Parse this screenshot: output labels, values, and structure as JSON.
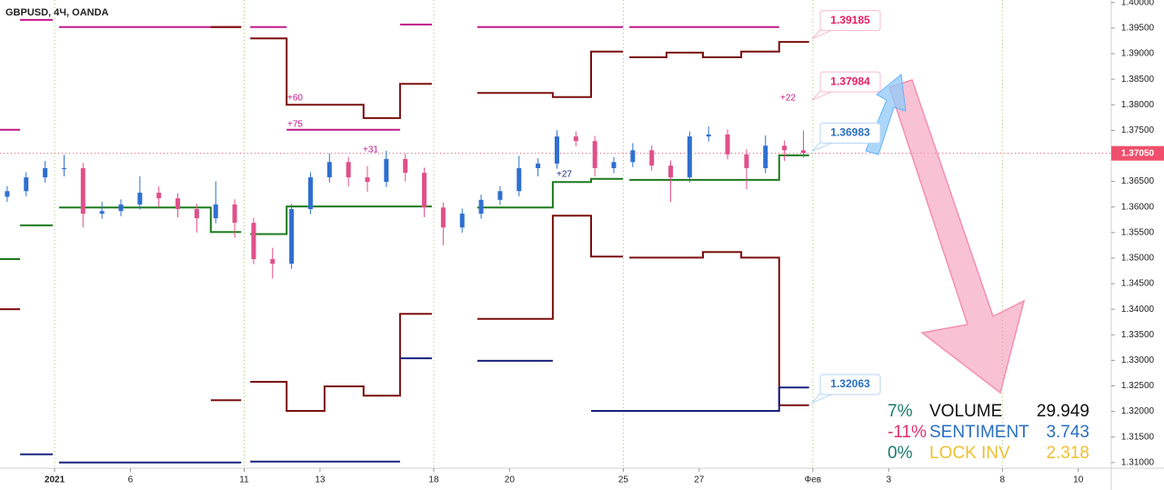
{
  "chart_data": {
    "type": "candlestick",
    "title": "GBPUSD, 4Ч, OANDA",
    "x": [
      -1.25,
      -0.75,
      -0.25,
      0.25,
      0.75,
      1.25,
      1.75,
      2.25,
      2.75,
      3.25,
      3.75,
      4.25,
      4.75,
      5.25,
      5.75,
      6.25,
      6.75,
      7.25,
      7.75,
      8.25,
      8.75,
      9.25,
      9.75,
      10.25,
      10.75,
      11.25,
      11.75,
      12.25,
      12.75,
      13.25,
      13.75,
      14.25,
      14.75,
      15.25,
      15.75,
      16.25,
      16.75,
      17.25,
      17.75,
      18.25,
      18.75,
      19.25,
      19.75
    ],
    "open": [
      1.362,
      1.3631,
      1.3658,
      1.3676,
      1.3676,
      1.3587,
      1.3592,
      1.3605,
      1.3628,
      1.3617,
      1.3596,
      1.3578,
      1.3605,
      1.3569,
      1.3498,
      1.3489,
      1.3596,
      1.3658,
      1.3688,
      1.3658,
      1.3649,
      1.3694,
      1.3667,
      1.3599,
      1.356,
      1.3587,
      1.3614,
      1.3631,
      1.3676,
      1.3685,
      1.3738,
      1.3729,
      1.3676,
      1.3688,
      1.3711,
      1.3681,
      1.3658,
      1.3738,
      1.3742,
      1.3703,
      1.3676,
      1.372,
      1.3711
    ],
    "high": [
      1.3641,
      1.3668,
      1.369,
      1.3702,
      1.3686,
      1.361,
      1.3615,
      1.366,
      1.364,
      1.3627,
      1.3606,
      1.365,
      1.3615,
      1.3579,
      1.352,
      1.3606,
      1.3668,
      1.3705,
      1.3698,
      1.368,
      1.371,
      1.3704,
      1.3677,
      1.3609,
      1.3597,
      1.3624,
      1.3641,
      1.37,
      1.3695,
      1.375,
      1.3748,
      1.3739,
      1.3698,
      1.3725,
      1.3721,
      1.3691,
      1.3748,
      1.3758,
      1.3752,
      1.3713,
      1.374,
      1.373,
      1.375
    ],
    "low": [
      1.361,
      1.3621,
      1.3648,
      1.366,
      1.356,
      1.3577,
      1.3582,
      1.3595,
      1.36,
      1.358,
      1.355,
      1.3568,
      1.354,
      1.3488,
      1.346,
      1.3479,
      1.3586,
      1.3648,
      1.364,
      1.363,
      1.3639,
      1.365,
      1.358,
      1.3525,
      1.355,
      1.3577,
      1.3604,
      1.3621,
      1.366,
      1.3675,
      1.3719,
      1.366,
      1.3666,
      1.3678,
      1.3671,
      1.361,
      1.3648,
      1.3728,
      1.3693,
      1.3635,
      1.3666,
      1.369,
      1.3696
    ],
    "close": [
      1.3631,
      1.3658,
      1.3676,
      1.3676,
      1.3587,
      1.3592,
      1.3605,
      1.3628,
      1.3617,
      1.3596,
      1.3578,
      1.3605,
      1.3569,
      1.3498,
      1.3489,
      1.3596,
      1.3658,
      1.3688,
      1.3658,
      1.3649,
      1.3694,
      1.3667,
      1.3599,
      1.356,
      1.3587,
      1.3614,
      1.3631,
      1.3676,
      1.3685,
      1.3738,
      1.3729,
      1.3676,
      1.3688,
      1.3711,
      1.3681,
      1.3658,
      1.3738,
      1.3742,
      1.3703,
      1.3676,
      1.372,
      1.3711,
      1.3706
    ],
    "up_color": "#2f6fd0",
    "down_color": "#e0508a",
    "series": [
      {
        "color": "#c2188b",
        "x": [
          -1.44,
          -0.91,
          null,
          -0.91,
          -0.05,
          null,
          0.12,
          4.92,
          null,
          5.16,
          6.12,
          null,
          6.12,
          9.11,
          null,
          9.11,
          9.95,
          null,
          11.15,
          14.99,
          null,
          15.16,
          19.11
        ],
        "values": [
          1.3751,
          1.3751,
          null,
          1.3966,
          1.3966,
          null,
          1.3952,
          1.3952,
          null,
          1.3952,
          1.3952,
          null,
          1.3751,
          1.3751,
          null,
          1.3957,
          1.3957,
          null,
          1.3952,
          1.3952,
          null,
          1.3952,
          1.3952
        ]
      },
      {
        "color": "#7b1010",
        "x": [
          4.12,
          4.92,
          null,
          5.16,
          6.12,
          6.12,
          8.15,
          8.15,
          9.11,
          9.11,
          9.95,
          null,
          11.15,
          13.14,
          13.14,
          14.15,
          14.15,
          14.99,
          null,
          15.16,
          16.14,
          16.14,
          17.1,
          17.1,
          18.11,
          18.11,
          19.11,
          19.11,
          19.9
        ],
        "values": [
          1.3952,
          1.3952,
          null,
          1.393,
          1.393,
          1.38,
          1.38,
          1.3774,
          1.3774,
          1.3841,
          1.3841,
          null,
          1.3823,
          1.3823,
          1.3815,
          1.3815,
          1.3904,
          1.3904,
          null,
          1.3893,
          1.3893,
          1.3902,
          1.3902,
          1.3893,
          1.3893,
          1.3904,
          1.3904,
          1.3923,
          1.3923
        ]
      },
      {
        "color": "#1e7a1e",
        "x": [
          -1.44,
          -0.91,
          null,
          -0.91,
          -0.05,
          null,
          0.12,
          4.12,
          4.12,
          4.92,
          null,
          5.16,
          6.12,
          6.12,
          9.95,
          null,
          11.15,
          13.14,
          13.14,
          14.15,
          14.15,
          14.99,
          null,
          15.16,
          19.11,
          19.11,
          19.9
        ],
        "values": [
          1.3498,
          1.3498,
          null,
          1.3564,
          1.3564,
          null,
          1.3599,
          1.3599,
          1.3551,
          1.3551,
          null,
          1.3547,
          1.3547,
          1.3601,
          1.3601,
          null,
          1.3599,
          1.3599,
          1.3649,
          1.3649,
          1.3655,
          1.3655,
          null,
          1.3653,
          1.3653,
          1.3701,
          1.3701
        ]
      },
      {
        "color": "#7b1010",
        "x": [
          -1.44,
          -0.91,
          null,
          4.12,
          4.92,
          null,
          5.16,
          6.12,
          6.12,
          7.12,
          7.12,
          8.15,
          8.15,
          9.11,
          9.11,
          9.95,
          null,
          11.15,
          13.14,
          13.14,
          14.15,
          14.15,
          14.99,
          null,
          15.16,
          17.1,
          17.1,
          18.11,
          18.11,
          19.11,
          19.11,
          19.9
        ],
        "values": [
          1.34,
          1.34,
          null,
          1.3222,
          1.3222,
          null,
          1.3258,
          1.3258,
          1.3201,
          1.3201,
          1.3249,
          1.3249,
          1.3231,
          1.3231,
          1.3391,
          1.3391,
          null,
          1.3381,
          1.3381,
          1.3583,
          1.3583,
          1.3503,
          1.3503,
          null,
          1.3501,
          1.3501,
          1.3512,
          1.3512,
          1.3501,
          1.3501,
          1.3212,
          1.3212
        ]
      },
      {
        "color": "#1a237e",
        "x": [
          -0.91,
          -0.05,
          null,
          0.12,
          4.92,
          null,
          5.16,
          9.11,
          null,
          9.11,
          9.95,
          null,
          11.15,
          13.14,
          null,
          14.15,
          19.11,
          19.11,
          19.9
        ],
        "values": [
          1.3116,
          1.3116,
          null,
          1.31,
          1.31,
          null,
          1.3102,
          1.3102,
          null,
          1.3304,
          1.3304,
          null,
          1.3299,
          1.3299,
          null,
          1.3201,
          1.3201,
          1.3247,
          1.3247
        ]
      }
    ],
    "xlim": [
      -1.44,
      27.87
    ],
    "ylim": [
      1.3089,
      1.4005
    ],
    "xticks": [
      {
        "value": 0,
        "label": "2021"
      },
      {
        "value": 2,
        "label": "6"
      },
      {
        "value": 5,
        "label": "11"
      },
      {
        "value": 7,
        "label": "13"
      },
      {
        "value": 10,
        "label": "18"
      },
      {
        "value": 12,
        "label": "20"
      },
      {
        "value": 15,
        "label": "25"
      },
      {
        "value": 17,
        "label": "27"
      },
      {
        "value": 20,
        "label": "Фев"
      },
      {
        "value": 22,
        "label": "3"
      },
      {
        "value": 25,
        "label": "8"
      },
      {
        "value": 27,
        "label": "10"
      }
    ],
    "x_gridlines": [
      0,
      5,
      10,
      15,
      20,
      25
    ],
    "yticks": [
      {
        "value": 1.31,
        "label": "1.31000"
      },
      {
        "value": 1.315,
        "label": "1.31500"
      },
      {
        "value": 1.32,
        "label": "1.32000"
      },
      {
        "value": 1.325,
        "label": "1.32500"
      },
      {
        "value": 1.33,
        "label": "1.33000"
      },
      {
        "value": 1.335,
        "label": "1.33500"
      },
      {
        "value": 1.34,
        "label": "1.34000"
      },
      {
        "value": 1.345,
        "label": "1.34500"
      },
      {
        "value": 1.35,
        "label": "1.35000"
      },
      {
        "value": 1.355,
        "label": "1.35500"
      },
      {
        "value": 1.36,
        "label": "1.36000"
      },
      {
        "value": 1.365,
        "label": "1.36500"
      },
      {
        "value": 1.37,
        "label": "1.37000"
      },
      {
        "value": 1.375,
        "label": "1.37500"
      },
      {
        "value": 1.38,
        "label": "1.38000"
      },
      {
        "value": 1.385,
        "label": "1.38500"
      },
      {
        "value": 1.39,
        "label": "1.39000"
      },
      {
        "value": 1.395,
        "label": "1.39500"
      },
      {
        "value": 1.4,
        "label": "1.40000"
      }
    ],
    "price_line": {
      "value": 1.3705,
      "label": "1.37050",
      "color": "#ef4f6c"
    },
    "price_labels": [
      {
        "value": 1.39185,
        "color": "#e91e63",
        "border": "#f8bbd0"
      },
      {
        "value": 1.37984,
        "color": "#e91e63",
        "border": "#f8bbd0"
      },
      {
        "value": 1.36983,
        "color": "#2a6fc0",
        "border": "#b3d4f5"
      },
      {
        "value": 1.32063,
        "color": "#2a6fc0",
        "border": "#b3d4f5"
      }
    ],
    "annotations": [
      "+60",
      "+75",
      "+31",
      "+27",
      "+22"
    ],
    "panel": [
      {
        "change": "7%",
        "label": "VOLUME",
        "value": 29.949,
        "change_color": "#1b7b6e",
        "label_color": "#111111"
      },
      {
        "change": "-11%",
        "label": "SENTIMENT",
        "value": 3.743,
        "change_color": "#e0306a",
        "label_color": "#2a6fc0"
      },
      {
        "change": "0%",
        "label": "LOCK INV",
        "value": 2.318,
        "change_color": "#1b7b6e",
        "label_color": "#f0c030"
      }
    ]
  }
}
